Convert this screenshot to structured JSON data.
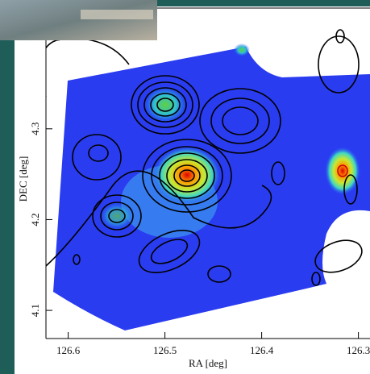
{
  "chart_data": {
    "type": "map",
    "xlabel": "RA [deg]",
    "ylabel": "DEC [deg]",
    "xlim": [
      126.623,
      126.288
    ],
    "ylim": [
      4.069,
      4.433
    ],
    "xticks": [
      126.6,
      126.5,
      126.4,
      126.3
    ],
    "yticks": [
      4.1,
      4.2,
      4.3
    ]
  }
}
